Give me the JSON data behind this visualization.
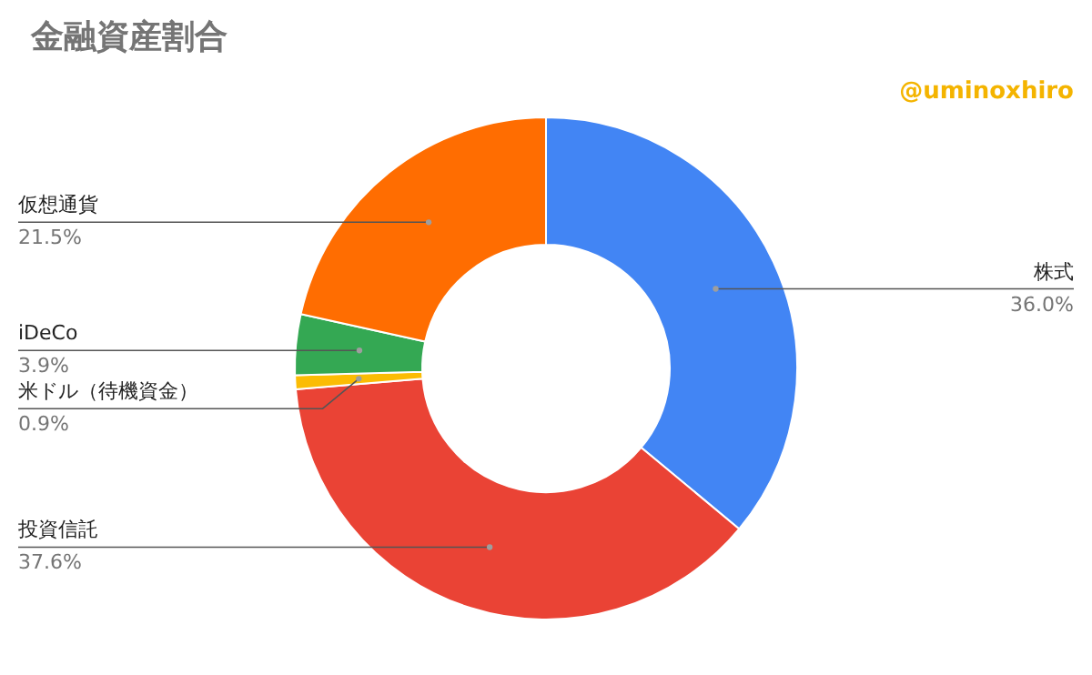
{
  "chart_data": {
    "type": "donut",
    "title": "金融資産割合",
    "categories": [
      "株式",
      "投資信託",
      "米ドル（待機資金）",
      "iDeCo",
      "仮想通貨"
    ],
    "values": [
      36.0,
      37.6,
      0.9,
      3.9,
      21.5
    ],
    "value_labels": [
      "36.0%",
      "37.6%",
      "0.9%",
      "3.9%",
      "21.5%"
    ],
    "colors": [
      "#4285f4",
      "#ea4335",
      "#fbbc04",
      "#34a853",
      "#ff6d01"
    ],
    "legend": false,
    "annotations": [
      "@uminoxhiro"
    ]
  }
}
